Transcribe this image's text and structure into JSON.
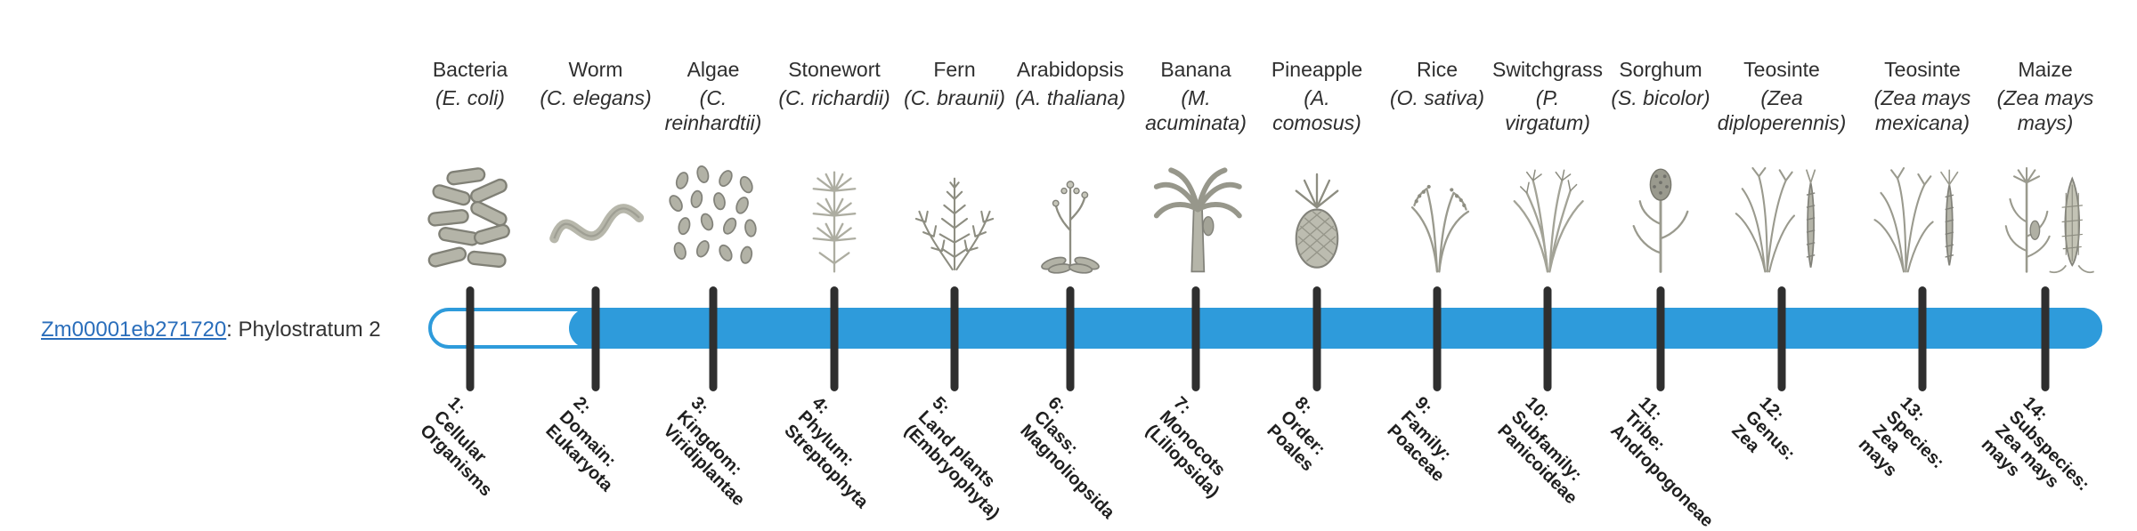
{
  "page": {
    "background": "#ffffff"
  },
  "gene": {
    "id": "Zm00001eb271720",
    "label_suffix": ": Phylostratum 2",
    "link_color": "#2a6ebb"
  },
  "bar": {
    "color": "#2e9bdb",
    "unfilled_color": "#ffffff",
    "tick_color": "#2f2f2f",
    "filled_from_stratum": 2,
    "total_strata": 14
  },
  "organisms": [
    {
      "name": "Bacteria",
      "sci_lines": [
        "(E. coli)"
      ],
      "icon": "bacteria",
      "stratum_lines": [
        "1:",
        "Cellular",
        "Organisms"
      ]
    },
    {
      "name": "Worm",
      "sci_lines": [
        "(C. elegans)"
      ],
      "icon": "worm",
      "stratum_lines": [
        "2:",
        "Domain:",
        "Eukaryota"
      ]
    },
    {
      "name": "Algae",
      "sci_lines": [
        "(C.",
        "reinhardtii)"
      ],
      "icon": "algae",
      "stratum_lines": [
        "3:",
        "Kingdom:",
        "Viridiplantae"
      ]
    },
    {
      "name": "Stonewort",
      "sci_lines": [
        "(C. richardii)"
      ],
      "icon": "stonewort",
      "stratum_lines": [
        "4:",
        "Phylum:",
        "Streptophyta"
      ]
    },
    {
      "name": "Fern",
      "sci_lines": [
        "(C. braunii)"
      ],
      "icon": "fern",
      "stratum_lines": [
        "5:",
        "Land plants",
        "(Embryophyta)"
      ]
    },
    {
      "name": "Arabidopsis",
      "sci_lines": [
        "(A. thaliana)"
      ],
      "icon": "arabidopsis",
      "stratum_lines": [
        "6:",
        "Class:",
        "Magnoliopsida"
      ]
    },
    {
      "name": "Banana",
      "sci_lines": [
        "(M.",
        "acuminata)"
      ],
      "icon": "banana",
      "stratum_lines": [
        "7:",
        "Monocots",
        "(Liliopsida)"
      ]
    },
    {
      "name": "Pineapple",
      "sci_lines": [
        "(A.",
        "comosus)"
      ],
      "icon": "pineapple",
      "stratum_lines": [
        "8:",
        "Order:",
        "Poales"
      ]
    },
    {
      "name": "Rice",
      "sci_lines": [
        "(O. sativa)"
      ],
      "icon": "rice",
      "stratum_lines": [
        "9:",
        "Family:",
        "Poaceae"
      ]
    },
    {
      "name": "Switchgrass",
      "sci_lines": [
        "(P.",
        "virgatum)"
      ],
      "icon": "switchgrass",
      "stratum_lines": [
        "10:",
        "Subfamily:",
        "Panicoideae"
      ]
    },
    {
      "name": "Sorghum",
      "sci_lines": [
        "(S. bicolor)"
      ],
      "icon": "sorghum",
      "stratum_lines": [
        "11:",
        "Tribe:",
        "Andropogoneae"
      ]
    },
    {
      "name": "Teosinte",
      "sci_lines": [
        "(Zea",
        "diploperennis)"
      ],
      "icon": "teosinte-diploperennis",
      "stratum_lines": [
        "12:",
        "Genus:",
        "Zea"
      ]
    },
    {
      "name": "Teosinte",
      "sci_lines": [
        "(Zea mays",
        "mexicana)"
      ],
      "icon": "teosinte-mexicana",
      "stratum_lines": [
        "13:",
        "Species:",
        "Zea",
        "mays"
      ]
    },
    {
      "name": "Maize",
      "sci_lines": [
        "(Zea mays",
        "mays)"
      ],
      "icon": "maize",
      "stratum_lines": [
        "14:",
        "Subspecies:",
        "Zea mays",
        "mays"
      ]
    }
  ]
}
